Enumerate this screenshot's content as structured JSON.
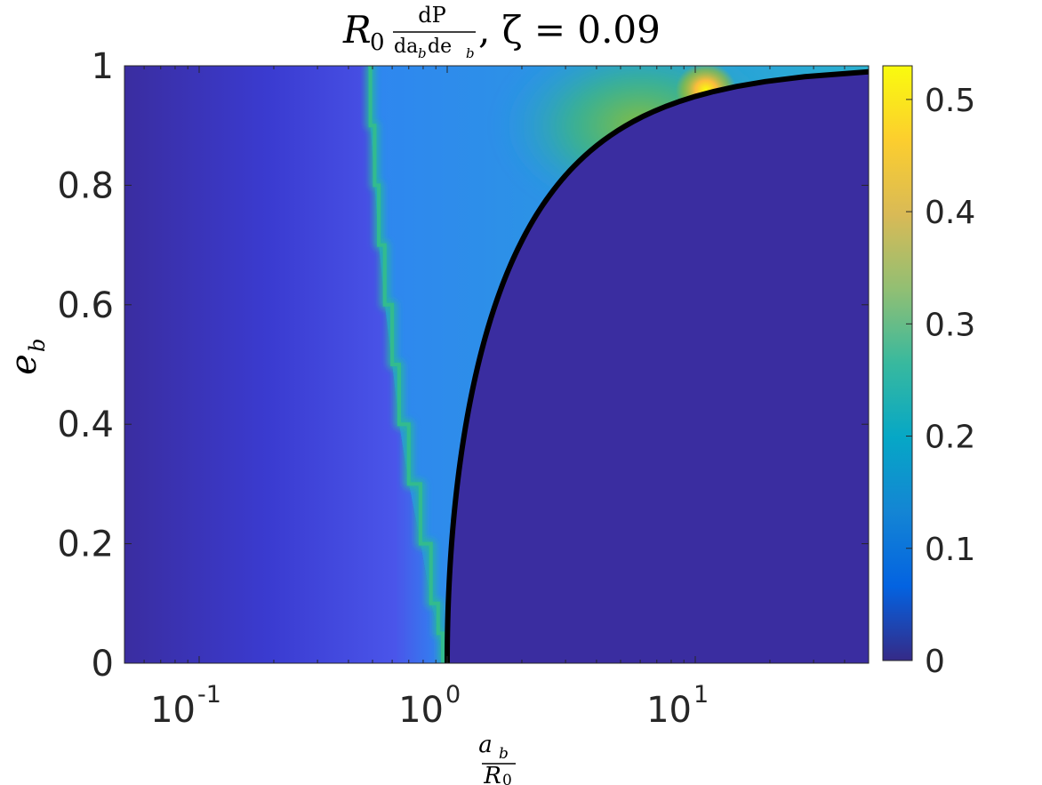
{
  "chart_data": {
    "type": "heatmap",
    "title": {
      "prefix": "R",
      "prefix_sub": "0",
      "frac_num": "dP",
      "frac_den": "da",
      "frac_den_sub1": "b",
      "frac_den_mid": "de",
      "frac_den_sub2": "b",
      "suffix": ", ζ = 0.09"
    },
    "xlabel": {
      "num": "a",
      "num_sub": "b",
      "den": "R",
      "den_sub": "0"
    },
    "ylabel": {
      "main": "e",
      "sub": "b"
    },
    "x_scale": "log",
    "xlim": [
      0.05,
      50
    ],
    "ylim": [
      0,
      1
    ],
    "x_ticks": [
      {
        "value": 0.1,
        "base": "10",
        "exp": "-1"
      },
      {
        "value": 1,
        "base": "10",
        "exp": "0"
      },
      {
        "value": 10,
        "base": "10",
        "exp": "1"
      }
    ],
    "y_ticks": [
      {
        "value": 0,
        "label": "0"
      },
      {
        "value": 0.2,
        "label": "0.2"
      },
      {
        "value": 0.4,
        "label": "0.4"
      },
      {
        "value": 0.6,
        "label": "0.6"
      },
      {
        "value": 0.8,
        "label": "0.8"
      },
      {
        "value": 1,
        "label": "1"
      }
    ],
    "colorbar": {
      "colormap": "parula",
      "range": [
        0,
        0.53
      ],
      "ticks": [
        {
          "value": 0,
          "label": "0"
        },
        {
          "value": 0.1,
          "label": "0.1"
        },
        {
          "value": 0.2,
          "label": "0.2"
        },
        {
          "value": 0.3,
          "label": "0.3"
        },
        {
          "value": 0.4,
          "label": "0.4"
        },
        {
          "value": 0.5,
          "label": "0.5"
        }
      ]
    },
    "ridge_line": [
      {
        "e": 0.0,
        "a": 0.96
      },
      {
        "e": 0.05,
        "a": 0.92
      },
      {
        "e": 0.1,
        "a": 0.86
      },
      {
        "e": 0.2,
        "a": 0.78
      },
      {
        "e": 0.3,
        "a": 0.7
      },
      {
        "e": 0.4,
        "a": 0.64
      },
      {
        "e": 0.5,
        "a": 0.6
      },
      {
        "e": 0.6,
        "a": 0.56
      },
      {
        "e": 0.7,
        "a": 0.53
      },
      {
        "e": 0.8,
        "a": 0.51
      },
      {
        "e": 0.9,
        "a": 0.49
      },
      {
        "e": 1.0,
        "a": 0.48
      }
    ],
    "peak": {
      "a": 10,
      "e": 0.96,
      "value": 0.53
    },
    "boundary_curve": {
      "equation": "a_b / R0 = 1 / (1 - e_b^2)",
      "color": "#000000",
      "points": [
        {
          "e": 0.0,
          "a": 1.0
        },
        {
          "e": 0.2,
          "a": 1.042
        },
        {
          "e": 0.4,
          "a": 1.19
        },
        {
          "e": 0.6,
          "a": 1.5625
        },
        {
          "e": 0.8,
          "a": 2.778
        },
        {
          "e": 0.9,
          "a": 5.26
        },
        {
          "e": 0.95,
          "a": 10.26
        },
        {
          "e": 0.98,
          "a": 25.25
        }
      ]
    }
  }
}
